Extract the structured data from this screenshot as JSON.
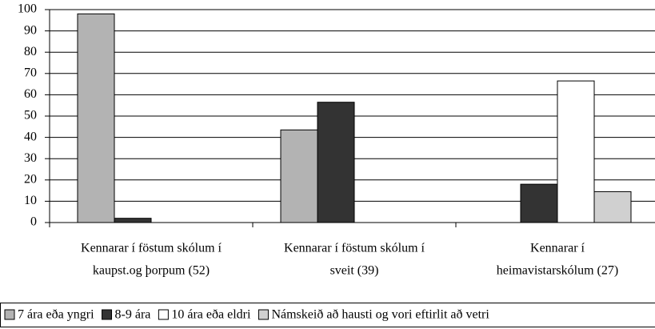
{
  "chart_data": {
    "type": "bar",
    "categories": [
      [
        "Kennarar í föstum skólum í",
        "kaupst.og þorpum (52)"
      ],
      [
        "Kennarar í föstum skólum í",
        "sveit (39)"
      ],
      [
        "Kennarar í",
        "heimavistarskólum (27)"
      ]
    ],
    "series": [
      {
        "name": "7 ára eða yngri",
        "color": "#b3b3b3",
        "values": [
          98,
          43.5,
          null
        ]
      },
      {
        "name": "8-9 ára",
        "color": "#333333",
        "values": [
          2,
          56.5,
          18
        ]
      },
      {
        "name": "10 ára eða eldri",
        "color": "#ffffff",
        "values": [
          null,
          null,
          66.5
        ]
      },
      {
        "name": "Námskeið að hausti og vori eftirlit að vetri",
        "color": "#d0d0d0",
        "values": [
          null,
          null,
          14.5
        ]
      }
    ],
    "ylim": [
      0,
      100
    ],
    "yticks": [
      0,
      10,
      20,
      30,
      40,
      50,
      60,
      70,
      80,
      90,
      100
    ],
    "grid": true,
    "legend": "bottom"
  }
}
